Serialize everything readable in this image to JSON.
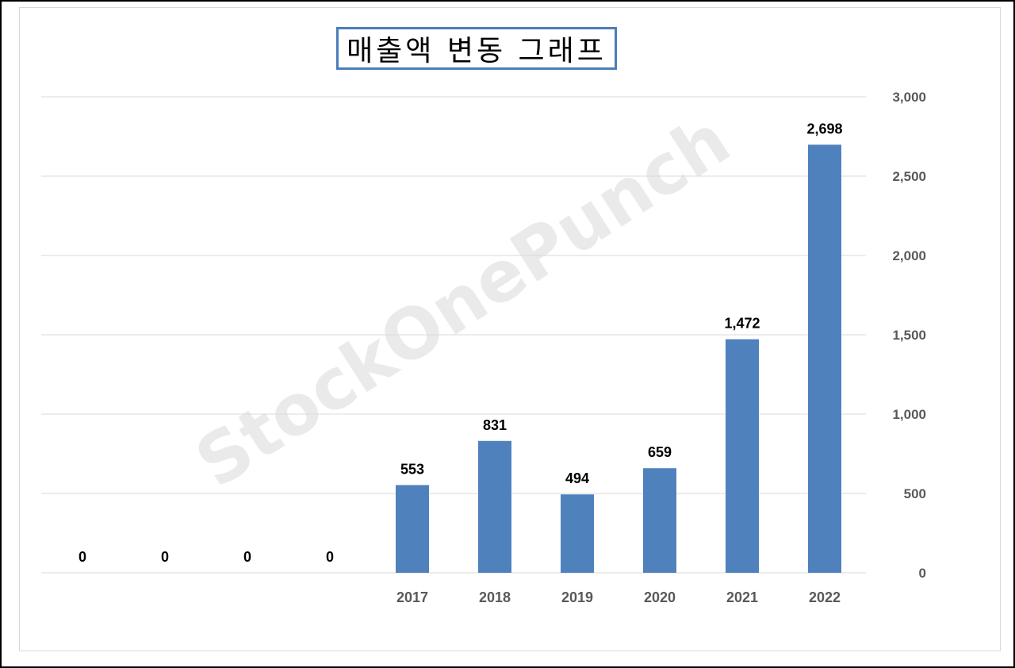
{
  "chart_data": {
    "type": "bar",
    "title": "매출액 변동 그래프",
    "categories": [
      "",
      "",
      "",
      "",
      "2017",
      "2018",
      "2019",
      "2020",
      "2021",
      "2022"
    ],
    "values": [
      0,
      0,
      0,
      0,
      553,
      831,
      494,
      659,
      1472,
      2698
    ],
    "data_labels": [
      "0",
      "0",
      "0",
      "0",
      "553",
      "831",
      "494",
      "659",
      "1,472",
      "2,698"
    ],
    "ylim": [
      0,
      3000
    ],
    "y_ticks": [
      "0",
      "500",
      "1,000",
      "1,500",
      "2,000",
      "2,500",
      "3,000"
    ],
    "y_tick_values": [
      0,
      500,
      1000,
      1500,
      2000,
      2500,
      3000
    ],
    "y_axis_side": "right",
    "grid": true,
    "bar_color": "#4f81bd",
    "watermark": "StockOnePunch"
  }
}
